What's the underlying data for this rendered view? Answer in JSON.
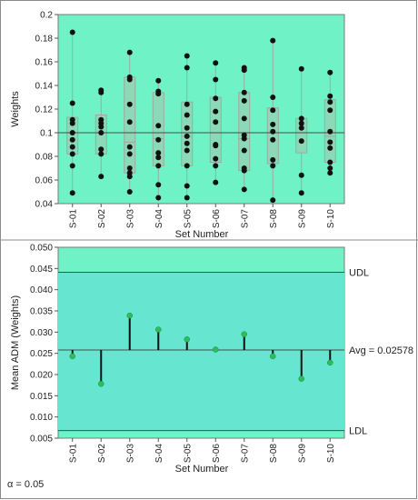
{
  "colors": {
    "plot_bg": "#6ff3c6",
    "ref_band": "#66e6d0",
    "box_fill": "#8bd9b6",
    "box_stroke": "#9ea8a2",
    "point": "#111111",
    "mean_point": "#2bbf5c",
    "ref_line": "#4b4b4b"
  },
  "chart_data": [
    {
      "type": "scatter",
      "subtype": "box-and-points",
      "title": "",
      "xlabel": "Set Number",
      "ylabel": "Weights",
      "ylim": [
        0.04,
        0.2
      ],
      "yticks": [
        "0.04",
        "0.06",
        "0.08",
        "0.1",
        "0.12",
        "0.14",
        "0.16",
        "0.18",
        "0.2"
      ],
      "categories": [
        "S-01",
        "S-02",
        "S-03",
        "S-04",
        "S-05",
        "S-06",
        "S-07",
        "S-08",
        "S-09",
        "S-10"
      ],
      "grand_mean": 0.1,
      "points": [
        [
          0.185,
          0.125,
          0.111,
          0.108,
          0.1,
          0.094,
          0.088,
          0.082,
          0.072,
          0.049
        ],
        [
          0.136,
          0.134,
          0.111,
          0.108,
          0.105,
          0.1,
          0.086,
          0.082,
          0.063
        ],
        [
          0.168,
          0.147,
          0.145,
          0.124,
          0.109,
          0.088,
          0.082,
          0.07,
          0.066,
          0.063,
          0.05
        ],
        [
          0.144,
          0.135,
          0.133,
          0.106,
          0.094,
          0.083,
          0.079,
          0.072,
          0.056,
          0.045
        ],
        [
          0.165,
          0.155,
          0.124,
          0.115,
          0.104,
          0.097,
          0.091,
          0.085,
          0.072,
          0.055,
          0.045
        ],
        [
          0.159,
          0.145,
          0.129,
          0.118,
          0.109,
          0.09,
          0.089,
          0.078,
          0.072,
          0.058
        ],
        [
          0.155,
          0.153,
          0.134,
          0.127,
          0.112,
          0.098,
          0.095,
          0.085,
          0.07,
          0.068,
          0.052
        ],
        [
          0.178,
          0.13,
          0.119,
          0.107,
          0.101,
          0.094,
          0.077,
          0.072,
          0.043
        ],
        [
          0.154,
          0.112,
          0.108,
          0.104,
          0.093,
          0.064,
          0.049
        ],
        [
          0.151,
          0.131,
          0.126,
          0.119,
          0.101,
          0.092,
          0.087,
          0.075,
          0.07,
          0.066
        ]
      ],
      "boxes": [
        {
          "q1": 0.082,
          "median": 0.1,
          "q3": 0.113,
          "min": 0.049,
          "max": 0.185
        },
        {
          "q1": 0.082,
          "median": 0.1,
          "q3": 0.115,
          "min": 0.063,
          "max": 0.136
        },
        {
          "q1": 0.066,
          "median": 0.092,
          "q3": 0.147,
          "min": 0.05,
          "max": 0.168
        },
        {
          "q1": 0.072,
          "median": 0.095,
          "q3": 0.134,
          "min": 0.045,
          "max": 0.144
        },
        {
          "q1": 0.072,
          "median": 0.097,
          "q3": 0.126,
          "min": 0.045,
          "max": 0.165
        },
        {
          "q1": 0.075,
          "median": 0.1,
          "q3": 0.13,
          "min": 0.058,
          "max": 0.159
        },
        {
          "q1": 0.068,
          "median": 0.095,
          "q3": 0.134,
          "min": 0.052,
          "max": 0.155
        },
        {
          "q1": 0.074,
          "median": 0.1,
          "q3": 0.121,
          "min": 0.043,
          "max": 0.178
        },
        {
          "q1": 0.083,
          "median": 0.1,
          "q3": 0.112,
          "min": 0.049,
          "max": 0.154
        },
        {
          "q1": 0.075,
          "median": 0.097,
          "q3": 0.128,
          "min": 0.066,
          "max": 0.151
        }
      ],
      "grid": false
    },
    {
      "type": "scatter",
      "subtype": "analysis-of-means-needle",
      "xlabel": "Set Number",
      "ylabel": "Mean ADM (Weights)",
      "ylim": [
        0.005,
        0.05
      ],
      "yticks": [
        "0.005",
        "0.010",
        "0.015",
        "0.020",
        "0.025",
        "0.030",
        "0.035",
        "0.040",
        "0.045",
        "0.050"
      ],
      "categories": [
        "S-01",
        "S-02",
        "S-03",
        "S-04",
        "S-05",
        "S-06",
        "S-07",
        "S-08",
        "S-09",
        "S-10"
      ],
      "values": [
        0.0243,
        0.0178,
        0.0339,
        0.0306,
        0.0283,
        0.0259,
        0.0295,
        0.0243,
        0.019,
        0.0228
      ],
      "avg": 0.02578,
      "udl": 0.0441,
      "ldl": 0.0068,
      "labels": {
        "udl": "UDL",
        "ldl": "LDL",
        "avg": "Avg = 0.02578"
      },
      "grid": false
    }
  ],
  "footer": {
    "alpha": "α = 0.05"
  }
}
